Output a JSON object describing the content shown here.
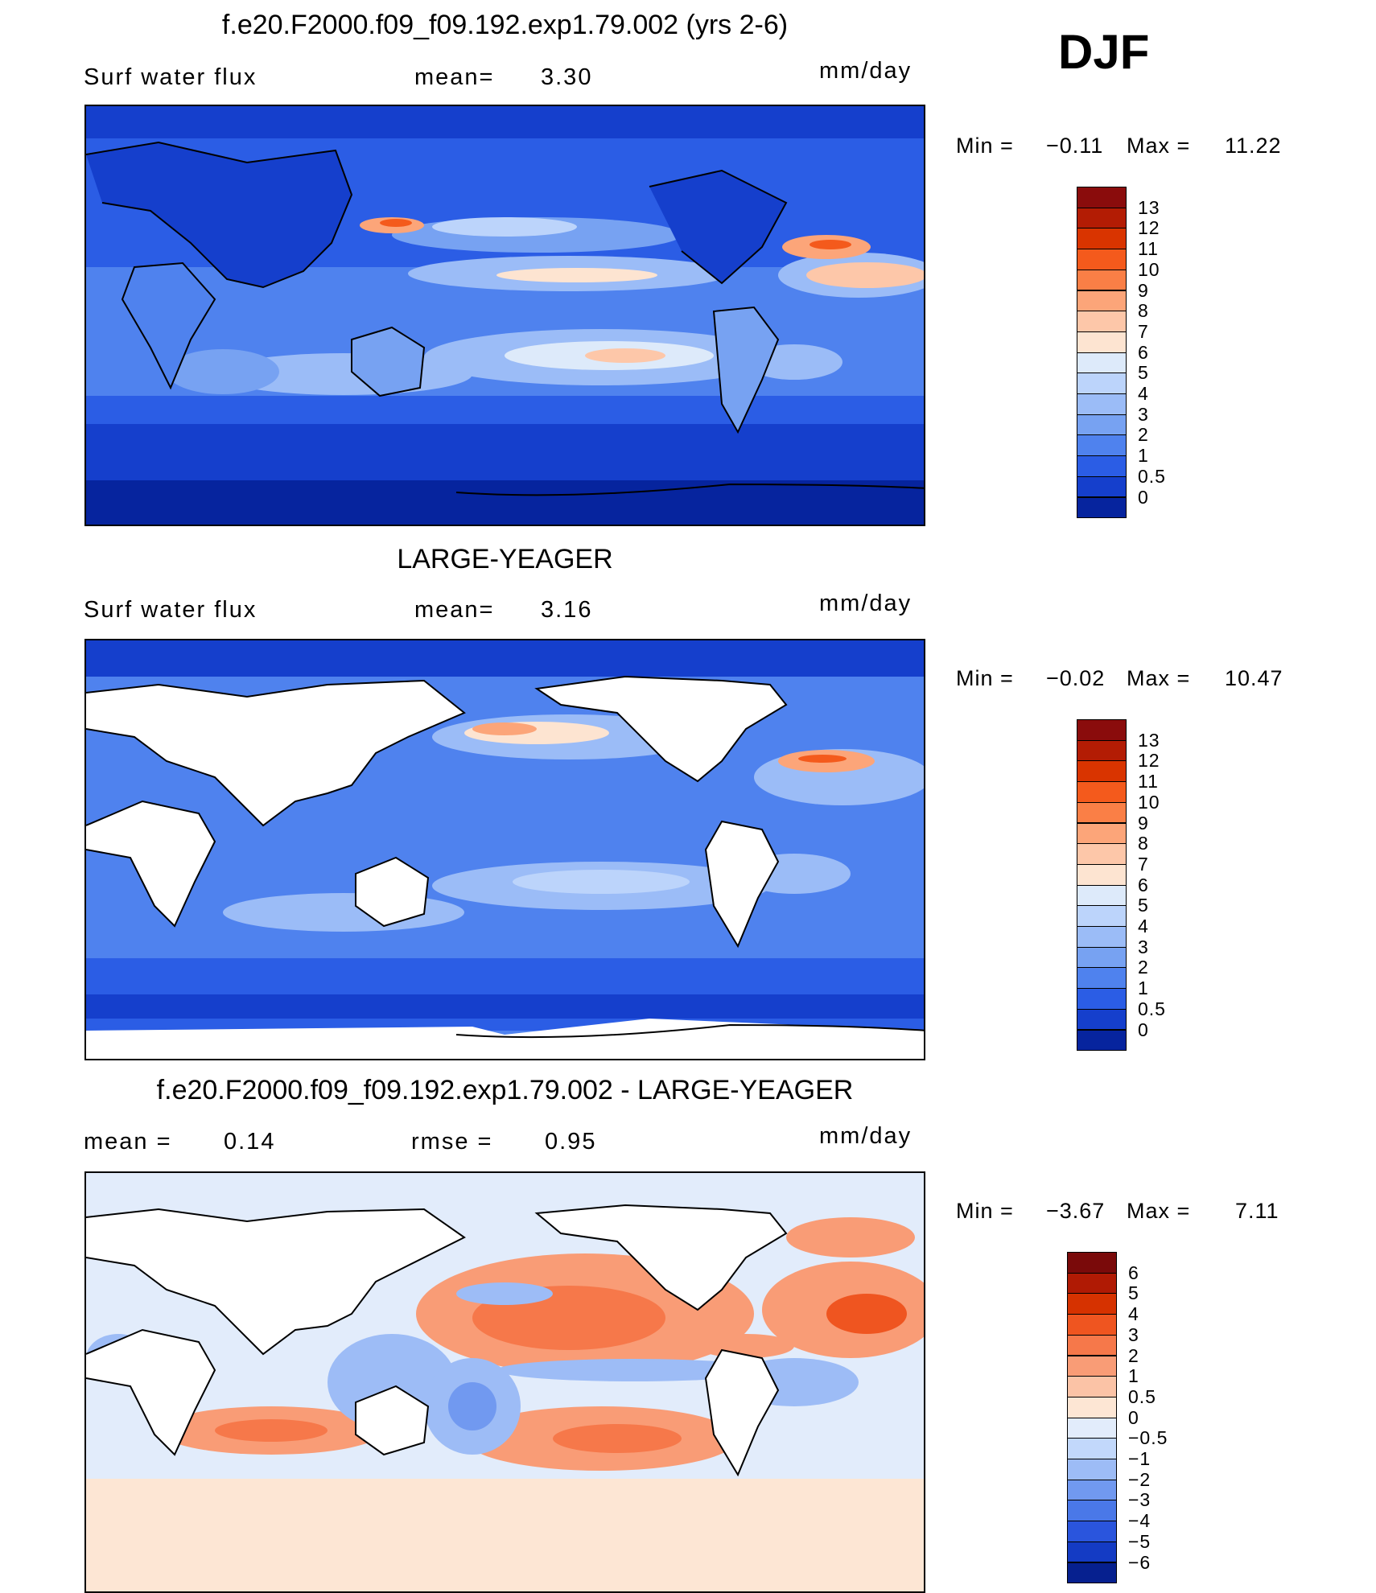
{
  "season": "DJF",
  "panels": [
    {
      "title": "f.e20.F2000.f09_f09.192.exp1.79.002 (yrs 2-6)",
      "left_label": "Surf water flux",
      "mid_label": "mean=",
      "mid_value": "3.30",
      "units": "mm/day",
      "min_label": "Min =",
      "min_value": "−0.11",
      "max_label": "Max =",
      "max_value": "11.22",
      "land_filled": true,
      "colorbar": {
        "labels": [
          "13",
          "12",
          "11",
          "10",
          "9",
          "8",
          "7",
          "6",
          "5",
          "4",
          "3",
          "2",
          "1",
          "0.5",
          "0"
        ],
        "colors": [
          "#8a0c0c",
          "#b31c04",
          "#d93400",
          "#f45a1c",
          "#fa7f46",
          "#fca579",
          "#fdc7a9",
          "#fde4d1",
          "#ddeafa",
          "#bcd4fb",
          "#9bbcf7",
          "#77a2f2",
          "#4f82ee",
          "#2b5de5",
          "#153fcc",
          "#06249e"
        ]
      }
    },
    {
      "title": "LARGE-YEAGER",
      "left_label": "Surf water flux",
      "mid_label": "mean=",
      "mid_value": "3.16",
      "units": "mm/day",
      "min_label": "Min =",
      "min_value": "−0.02",
      "max_label": "Max =",
      "max_value": "10.47",
      "land_filled": false,
      "colorbar": {
        "labels": [
          "13",
          "12",
          "11",
          "10",
          "9",
          "8",
          "7",
          "6",
          "5",
          "4",
          "3",
          "2",
          "1",
          "0.5",
          "0"
        ],
        "colors": [
          "#8a0c0c",
          "#b31c04",
          "#d93400",
          "#f45a1c",
          "#fa7f46",
          "#fca579",
          "#fdc7a9",
          "#fde4d1",
          "#ddeafa",
          "#bcd4fb",
          "#9bbcf7",
          "#77a2f2",
          "#4f82ee",
          "#2b5de5",
          "#153fcc",
          "#06249e"
        ]
      }
    },
    {
      "title": "f.e20.F2000.f09_f09.192.exp1.79.002 - LARGE-YEAGER",
      "left_label": "mean =",
      "left_value": "0.14",
      "mid_label": "rmse =",
      "mid_value": "0.95",
      "units": "mm/day",
      "min_label": "Min =",
      "min_value": "−3.67",
      "max_label": "Max =",
      "max_value": "7.11",
      "land_filled": false,
      "colorbar": {
        "labels": [
          "6",
          "5",
          "4",
          "3",
          "2",
          "1",
          "0.5",
          "0",
          "−0.5",
          "−1",
          "−2",
          "−3",
          "−4",
          "−5",
          "−6"
        ],
        "colors": [
          "#7a0a0a",
          "#b01a04",
          "#d63200",
          "#ef5520",
          "#f6784a",
          "#f99c76",
          "#fbc3a6",
          "#fde6d4",
          "#e2ecfb",
          "#c2d8fb",
          "#9dbcf6",
          "#7199f0",
          "#4a78e8",
          "#2a55dd",
          "#143bc4",
          "#06208f"
        ]
      }
    }
  ]
}
